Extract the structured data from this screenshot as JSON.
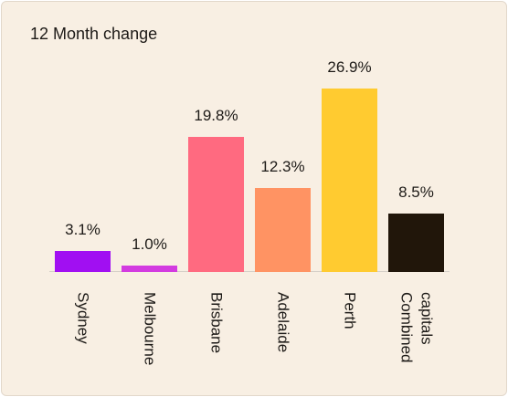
{
  "chart_data": {
    "type": "bar",
    "title": "12 Month change",
    "categories": [
      "Sydney",
      "Melbourne",
      "Brisbane",
      "Adelaide",
      "Perth",
      "Combined capitals"
    ],
    "values": [
      3.1,
      1.0,
      19.8,
      12.3,
      26.9,
      8.5
    ],
    "value_labels": [
      "3.1%",
      "1.0%",
      "19.8%",
      "12.3%",
      "26.9%",
      "8.5%"
    ],
    "colors": [
      "#a10ff2",
      "#d33be0",
      "#ff6a80",
      "#ff9363",
      "#ffcb30",
      "#21160a"
    ]
  }
}
